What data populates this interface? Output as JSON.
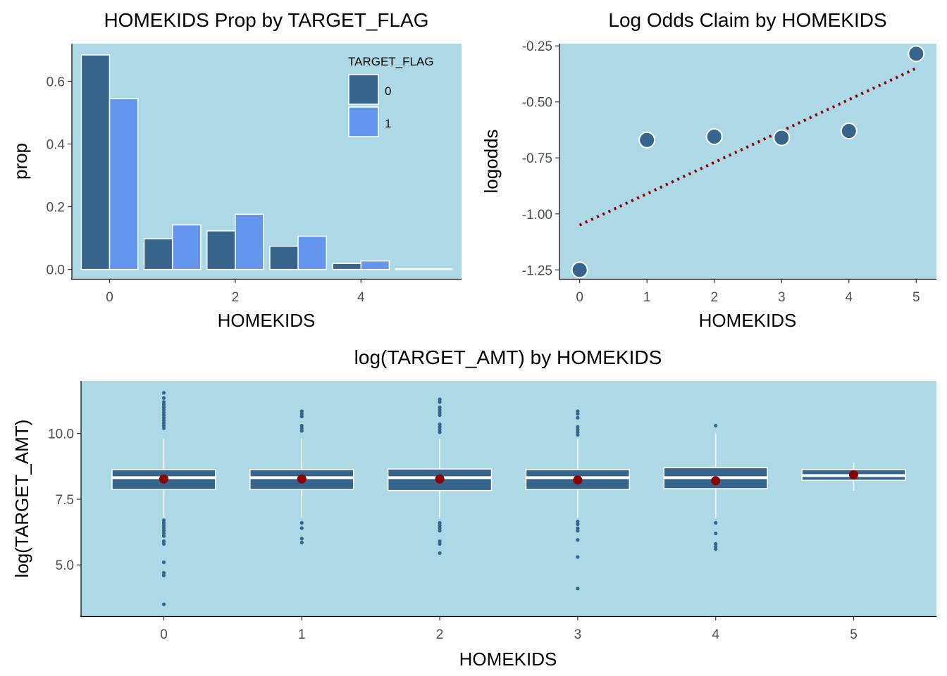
{
  "colors": {
    "panel_bg": "#add8e6",
    "bar_0": "#36648b",
    "bar_1": "#6495ed",
    "bar_stroke": "#ffffff",
    "point": "#36648b",
    "fit_line": "#8b0000",
    "box_fill": "#36648b",
    "mean_point": "#8b0000"
  },
  "chart_data": [
    {
      "type": "bar",
      "title": "HOMEKIDS Prop by TARGET_FLAG",
      "xlabel": "HOMEKIDS",
      "ylabel": "prop",
      "x_ticks": [
        0,
        2,
        4
      ],
      "y_ticks": [
        "0.0",
        "0.2",
        "0.4",
        "0.6"
      ],
      "xlim": [
        -0.6,
        5.6
      ],
      "ylim": [
        -0.03,
        0.72
      ],
      "legend": {
        "title": "TARGET_FLAG",
        "position": "top-right",
        "entries": [
          "0",
          "1"
        ]
      },
      "categories": [
        0,
        1,
        2,
        3,
        4,
        5
      ],
      "series": [
        {
          "name": "0",
          "values": [
            0.684,
            0.098,
            0.123,
            0.074,
            0.019,
            0.002
          ]
        },
        {
          "name": "1",
          "values": [
            0.545,
            0.142,
            0.176,
            0.106,
            0.027,
            0.002
          ]
        }
      ]
    },
    {
      "type": "scatter",
      "title": "Log Odds Claim by HOMEKIDS",
      "xlabel": "HOMEKIDS",
      "ylabel": "logodds",
      "x_ticks": [
        0,
        1,
        2,
        3,
        4,
        5
      ],
      "y_ticks": [
        "-1.25",
        "-1.00",
        "-0.75",
        "-0.50",
        "-0.25"
      ],
      "xlim": [
        -0.3,
        5.3
      ],
      "ylim": [
        -1.29,
        -0.24
      ],
      "x": [
        0,
        1,
        2,
        3,
        4,
        5
      ],
      "y": [
        -1.25,
        -0.67,
        -0.655,
        -0.66,
        -0.63,
        -0.285
      ],
      "trend_line": {
        "x": [
          0,
          5
        ],
        "y": [
          -1.05,
          -0.35
        ],
        "style": "dotted"
      }
    },
    {
      "type": "box",
      "title": "log(TARGET_AMT) by HOMEKIDS",
      "xlabel": "HOMEKIDS",
      "ylabel": "log(TARGET_AMT)",
      "x_ticks": [
        0,
        1,
        2,
        3,
        4,
        5
      ],
      "y_ticks": [
        "5.0",
        "7.5",
        "10.0"
      ],
      "xlim": [
        -0.6,
        5.6
      ],
      "ylim": [
        3.05,
        12.0
      ],
      "boxes": [
        {
          "x": 0,
          "q1": 7.87,
          "median": 8.32,
          "q3": 8.63,
          "lower_whisker": 6.8,
          "upper_whisker": 9.8,
          "mean": 8.27,
          "outliers": [
            11.55,
            11.35,
            11.2,
            11.1,
            11.0,
            10.9,
            10.8,
            10.7,
            10.6,
            10.5,
            10.4,
            10.3,
            10.2,
            6.7,
            6.6,
            6.5,
            6.4,
            6.3,
            6.2,
            6.1,
            5.9,
            5.8,
            5.1,
            4.7,
            4.6,
            3.5
          ]
        },
        {
          "x": 1,
          "q1": 7.87,
          "median": 8.32,
          "q3": 8.63,
          "lower_whisker": 6.8,
          "upper_whisker": 9.8,
          "mean": 8.27,
          "outliers": [
            10.85,
            10.75,
            10.65,
            10.3,
            10.2,
            10.1,
            6.6,
            6.4,
            6.0,
            5.85
          ]
        },
        {
          "x": 2,
          "q1": 7.83,
          "median": 8.32,
          "q3": 8.65,
          "lower_whisker": 6.8,
          "upper_whisker": 9.8,
          "mean": 8.27,
          "outliers": [
            11.3,
            11.2,
            11.0,
            10.9,
            10.8,
            10.7,
            10.35,
            10.25,
            10.15,
            10.05,
            6.6,
            6.5,
            6.4,
            6.3,
            5.9,
            5.8,
            5.45
          ]
        },
        {
          "x": 3,
          "q1": 7.87,
          "median": 8.32,
          "q3": 8.63,
          "lower_whisker": 6.8,
          "upper_whisker": 9.8,
          "mean": 8.23,
          "outliers": [
            10.85,
            10.75,
            10.6,
            10.25,
            10.15,
            10.05,
            9.95,
            6.65,
            6.55,
            6.4,
            6.3,
            5.95,
            5.3,
            4.1
          ]
        },
        {
          "x": 4,
          "q1": 7.9,
          "median": 8.32,
          "q3": 8.7,
          "lower_whisker": 6.8,
          "upper_whisker": 10.0,
          "mean": 8.2,
          "outliers": [
            10.3,
            6.6,
            6.2,
            5.8,
            5.7,
            5.6
          ]
        },
        {
          "x": 5,
          "q1": 8.22,
          "median": 8.4,
          "q3": 8.63,
          "lower_whisker": 7.82,
          "upper_whisker": 8.9,
          "mean": 8.43,
          "outliers": []
        }
      ]
    }
  ]
}
